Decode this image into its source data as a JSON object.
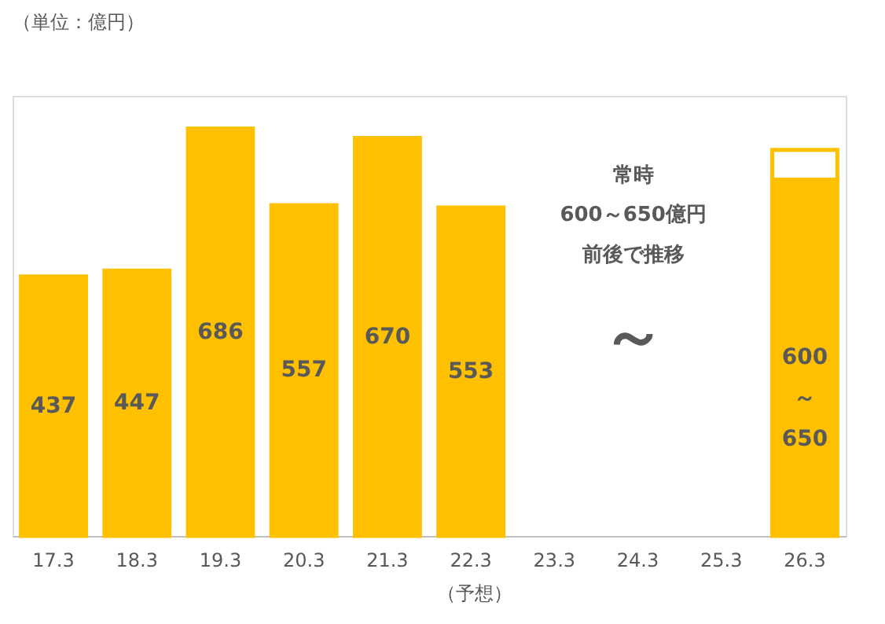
{
  "chart_data": {
    "type": "bar",
    "title": "（単位：億円）",
    "categories": [
      "17.3",
      "18.3",
      "19.3",
      "20.3",
      "21.3",
      "22.3",
      "23.3",
      "24.3",
      "25.3",
      "26.3"
    ],
    "stacked": true,
    "series": [
      {
        "color": "#ffc000",
        "values": [
          437,
          447,
          686,
          557,
          670,
          553,
          null,
          null,
          null,
          600
        ],
        "value_labels": [
          "437",
          "447",
          "686",
          "557",
          "670",
          "553",
          null,
          null,
          null,
          "600\n～\n650"
        ]
      },
      {
        "color": "#ffffff",
        "values": [
          null,
          null,
          null,
          null,
          null,
          null,
          null,
          null,
          null,
          50
        ],
        "value_labels": [
          null,
          null,
          null,
          null,
          null,
          null,
          null,
          null,
          null,
          null
        ]
      }
    ],
    "annotations": [
      "常時",
      "600～650億円",
      "前後で推移",
      "～",
      "（予想）"
    ],
    "grid": false,
    "legend": false
  }
}
